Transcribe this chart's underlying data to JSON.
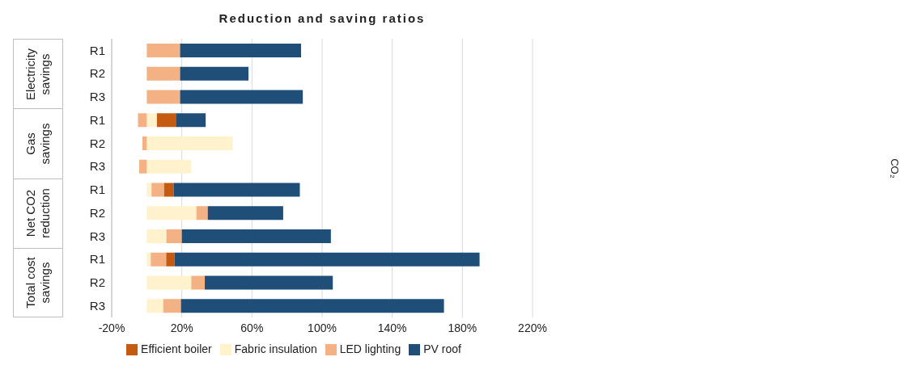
{
  "chart_data": {
    "type": "bar",
    "orientation": "horizontal",
    "stacked": true,
    "title": "Reduction and saving ratios",
    "categories": [
      "R1",
      "R2",
      "R3",
      "R1",
      "R2",
      "R3",
      "R1",
      "R2",
      "R3",
      "R1",
      "R2",
      "R3"
    ],
    "series": [
      {
        "name": "Fabric insulation",
        "color": "#fff2cc",
        "values": [
          null,
          null,
          null,
          5.8,
          49,
          25.4,
          2.7,
          28.3,
          11.2,
          2.3,
          25.4,
          9.4
        ]
      },
      {
        "name": "LED lighting",
        "color": "#f4b183",
        "values": [
          19,
          19,
          19,
          -5,
          -2.5,
          -4.3,
          7.2,
          6.5,
          8.8,
          8.8,
          7.7,
          10.1
        ]
      },
      {
        "name": "Efficient boiler",
        "color": "#c55a11",
        "values": [
          null,
          null,
          null,
          10.8,
          null,
          null,
          5.4,
          null,
          null,
          4.7,
          null,
          null
        ]
      },
      {
        "name": "PV roof",
        "color": "#1f4e79",
        "values": [
          69,
          39,
          70,
          17,
          null,
          null,
          72,
          43,
          85,
          174,
          73,
          150
        ]
      }
    ],
    "xlim": [
      -20,
      220
    ],
    "xticks": [
      {
        "value": -20,
        "label": "-20%"
      },
      {
        "value": 20,
        "label": "20%"
      },
      {
        "value": 60,
        "label": "60%"
      },
      {
        "value": 100,
        "label": "100%"
      },
      {
        "value": 140,
        "label": "140%"
      },
      {
        "value": 180,
        "label": "180%"
      },
      {
        "value": 220,
        "label": "220%"
      }
    ],
    "grid": "x",
    "legend": "bottom",
    "annotations": [
      "Electricity savings",
      "Gas savings",
      "Net CO2 reduction",
      "Total cost savings",
      "CO₂"
    ]
  }
}
